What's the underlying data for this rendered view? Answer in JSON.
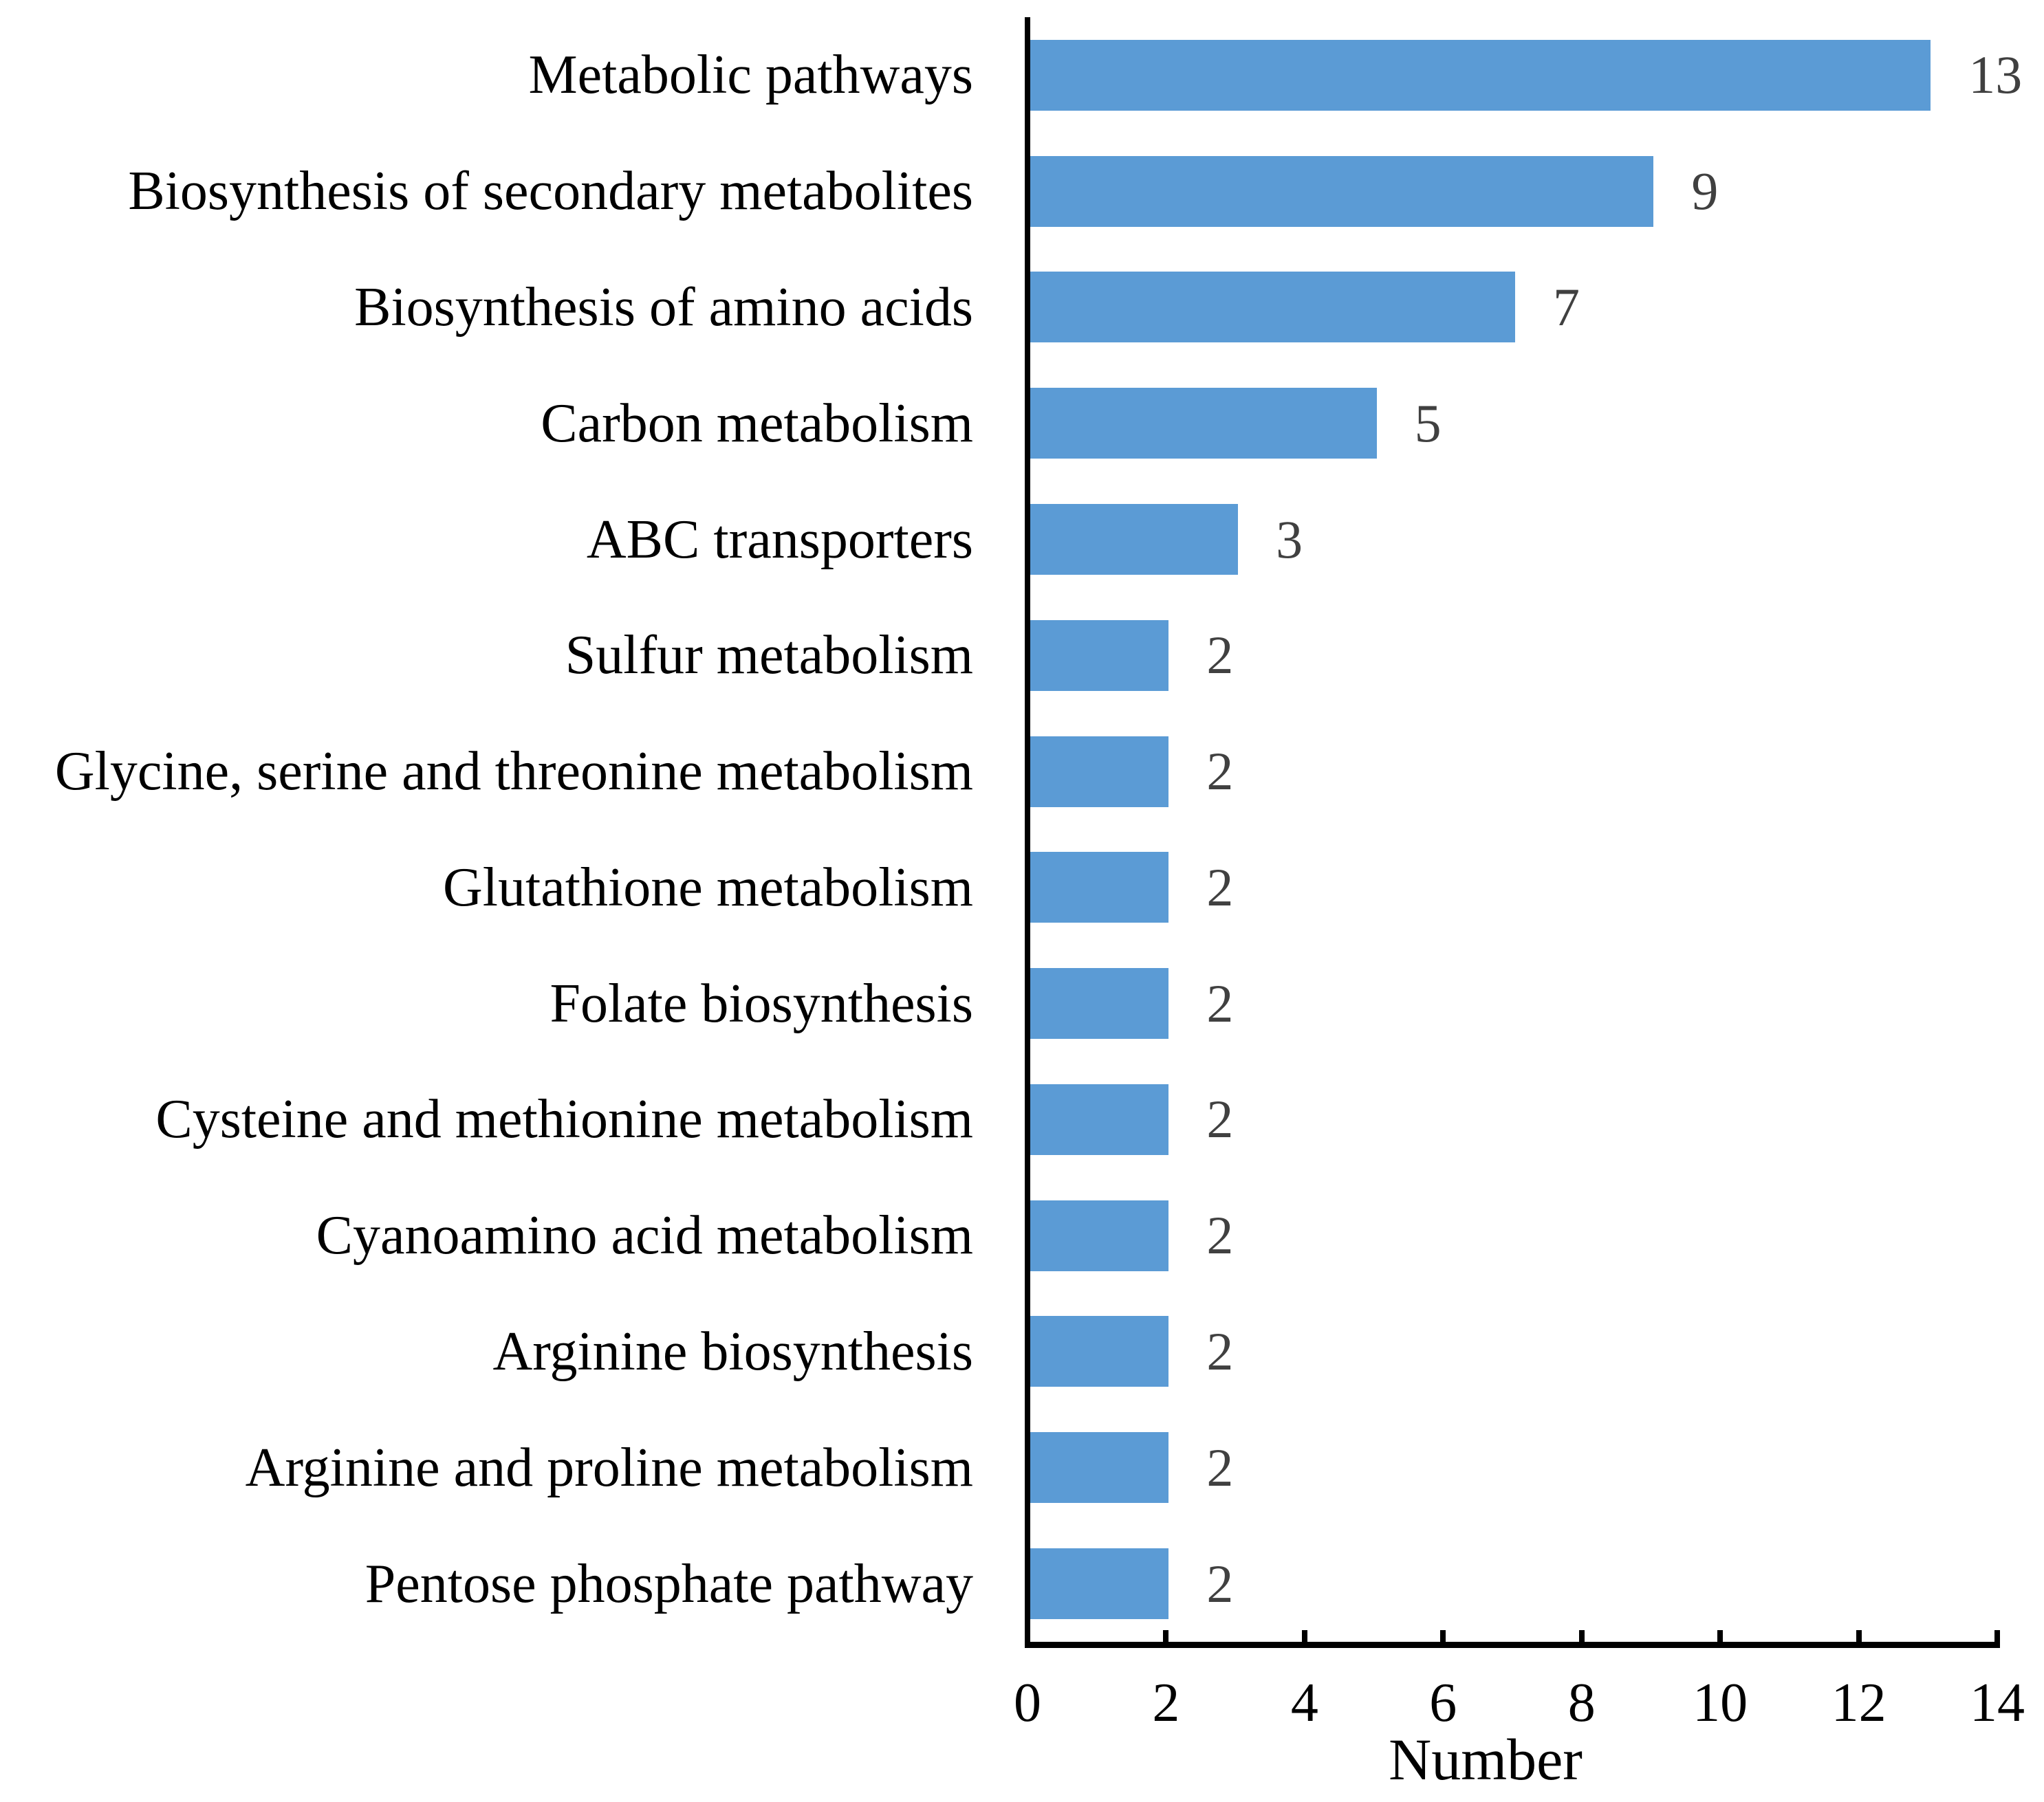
{
  "chart_data": {
    "type": "bar",
    "orientation": "horizontal",
    "title": "",
    "xlabel": "Number",
    "ylabel": "",
    "xlim": [
      0,
      14
    ],
    "xticks": [
      0,
      2,
      4,
      6,
      8,
      10,
      12,
      14
    ],
    "grid": false,
    "legend": "none",
    "categories": [
      "Metabolic pathways",
      "Biosynthesis of secondary metabolites",
      "Biosynthesis of amino acids",
      "Carbon metabolism",
      "ABC transporters",
      "Sulfur metabolism",
      "Glycine, serine and threonine metabolism",
      "Glutathione metabolism",
      "Folate biosynthesis",
      "Cysteine and methionine metabolism",
      "Cyanoamino acid metabolism",
      "Arginine biosynthesis",
      "Arginine and proline metabolism",
      "Pentose phosphate pathway"
    ],
    "values": [
      13,
      9,
      7,
      5,
      3,
      2,
      2,
      2,
      2,
      2,
      2,
      2,
      2,
      2
    ],
    "value_labels": [
      "13",
      "9",
      "7",
      "5",
      "3",
      "2",
      "2",
      "2",
      "2",
      "2",
      "2",
      "2",
      "2",
      "2"
    ],
    "colors": {
      "bar": "#5B9BD5",
      "value_label": "#404040",
      "axis": "#000000",
      "text": "#000000",
      "background": "#FFFFFF"
    }
  }
}
